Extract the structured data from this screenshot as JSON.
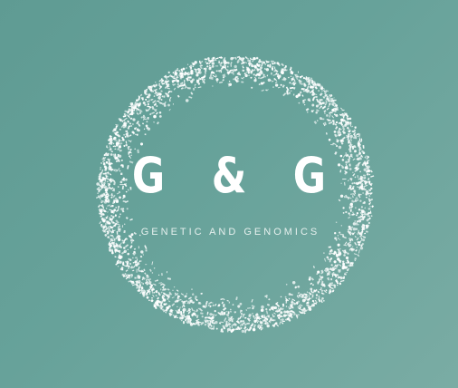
{
  "logo": {
    "wordmark": "G & G",
    "tagline": "GENETIC AND GENOMICS"
  },
  "colors": {
    "background": "#67a29a",
    "foreground": "#ffffff"
  },
  "icons": {
    "ring": "speckled-circle-ring"
  }
}
